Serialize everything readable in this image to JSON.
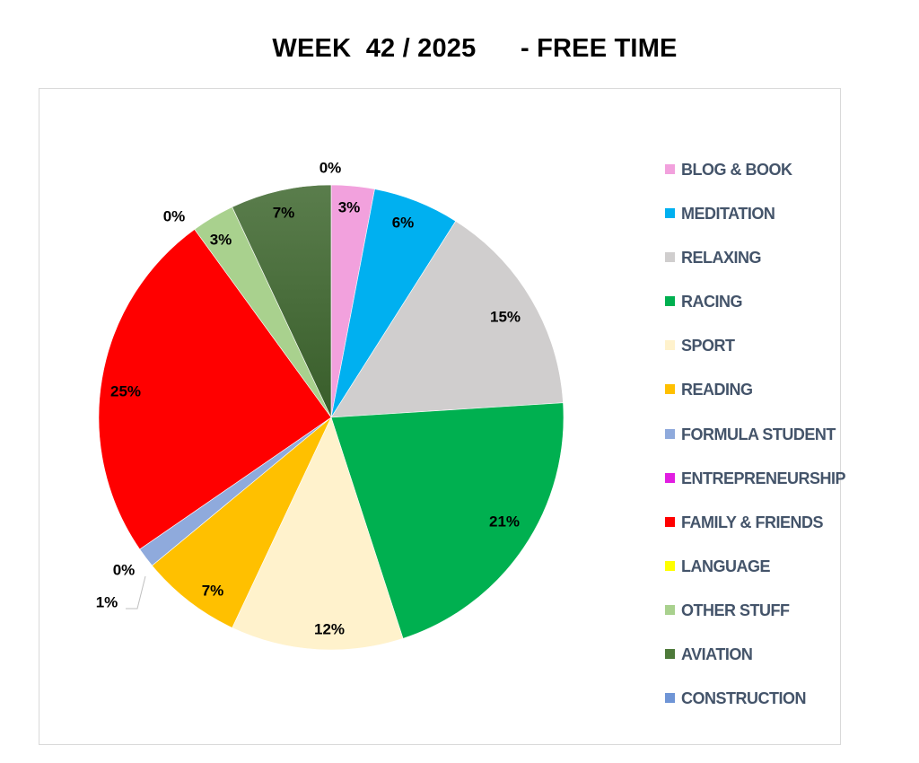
{
  "chart_data": {
    "type": "pie",
    "title": "WEEK  42 / 2025      - FREE TIME",
    "legend_position": "right",
    "slices": [
      {
        "name": "BLOG & BOOK",
        "value": 3,
        "label": "3%",
        "color": "#f2a1dd"
      },
      {
        "name": "MEDITATION",
        "value": 6,
        "label": "6%",
        "color": "#00b0f0"
      },
      {
        "name": "RELAXING",
        "value": 15,
        "label": "15%",
        "color": "#d0cece"
      },
      {
        "name": "RACING",
        "value": 21,
        "label": "21%",
        "color": "#00b050"
      },
      {
        "name": "SPORT",
        "value": 12,
        "label": "12%",
        "color": "#fff2cc"
      },
      {
        "name": "READING",
        "value": 7,
        "label": "7%",
        "color": "#ffc000"
      },
      {
        "name": "FORMULA STUDENT",
        "value": 1.4,
        "label": "1%",
        "color": "#8faadc"
      },
      {
        "name": "ENTREPRENEURSHIP",
        "value": 0,
        "label": "0%",
        "color": "#e11ee1"
      },
      {
        "name": "FAMILY & FRIENDS",
        "value": 24.6,
        "label": "25%",
        "color": "#ff0000"
      },
      {
        "name": "LANGUAGE",
        "value": 0,
        "label": "0%",
        "color": "#ffff00"
      },
      {
        "name": "OTHER STUFF",
        "value": 3,
        "label": "3%",
        "color": "#a9d18e"
      },
      {
        "name": "AVIATION",
        "value": 7,
        "label": "7%",
        "color": "#4e7a3a"
      },
      {
        "name": "CONSTRUCTION",
        "value": 0,
        "label": "0%",
        "color": "#6f95d6"
      }
    ]
  }
}
